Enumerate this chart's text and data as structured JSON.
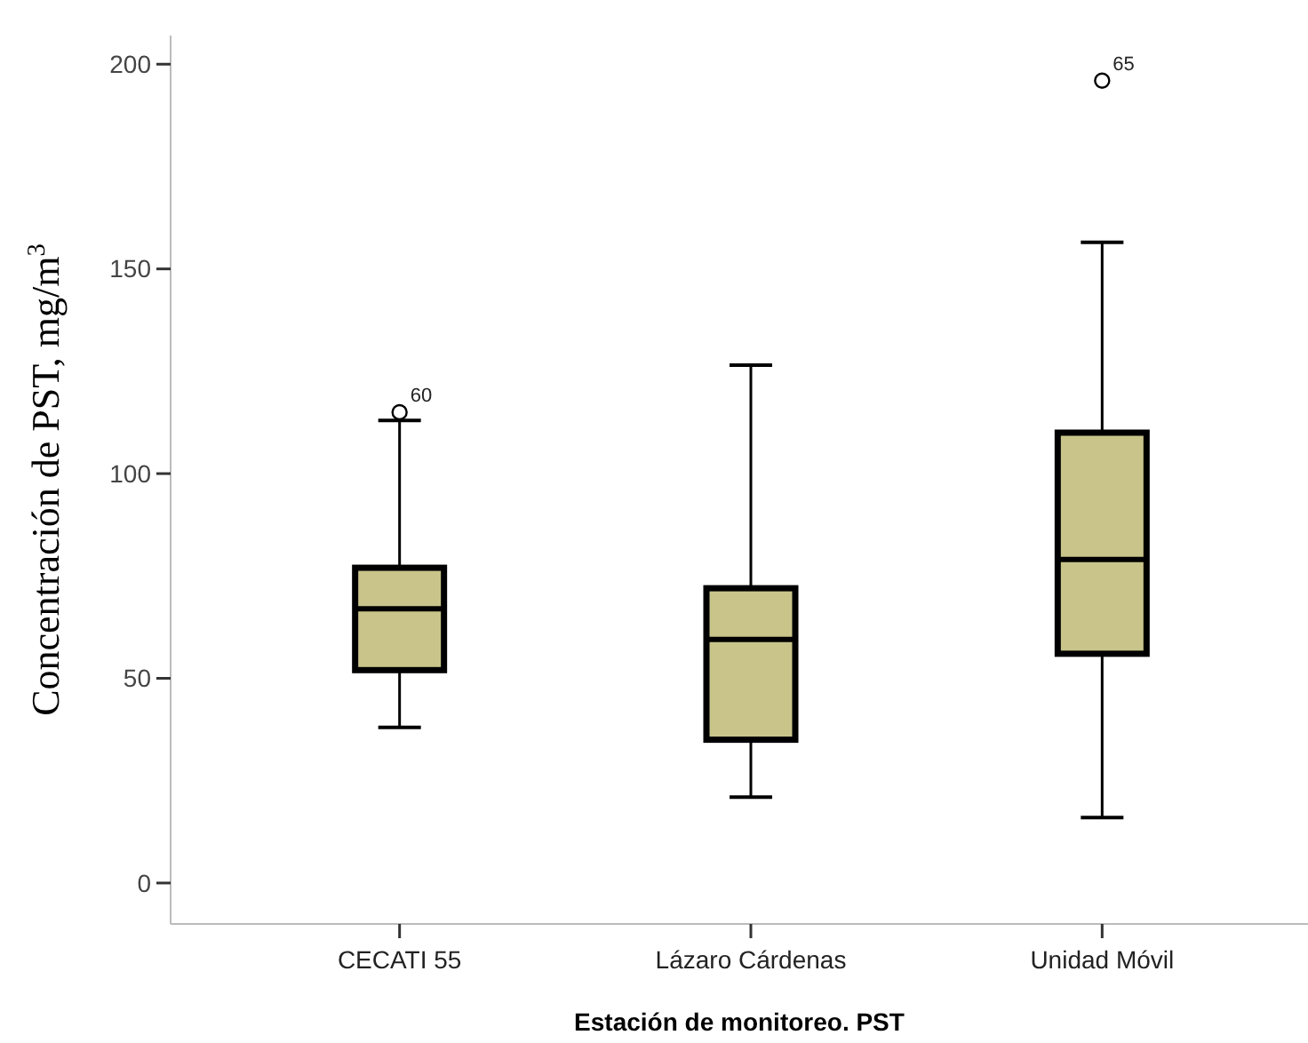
{
  "chart_data": {
    "type": "box",
    "xlabel": "Estación de monitoreo. PST",
    "ylabel": "Concentración de PST, mg/m$^{3}$",
    "categories": [
      "CECATI 55",
      "Lázaro Cárdenas",
      "Unidad Móvil"
    ],
    "boxes": [
      {
        "low": 38,
        "q1": 52,
        "median": 67,
        "q3": 77,
        "high": 113,
        "outliers": [
          115
        ]
      },
      {
        "low": 21,
        "q1": 35,
        "median": 59.5,
        "q3": 72,
        "high": 126.5
      },
      {
        "low": 16,
        "q1": 56,
        "median": 79,
        "q3": 110,
        "high": 156.5,
        "outliers": [
          196
        ]
      }
    ],
    "color": "#c9c58a",
    "ylim": [
      -10,
      207
    ],
    "yticks": [
      0,
      50,
      100,
      150,
      200
    ],
    "annotations": [
      "60",
      "65"
    ]
  }
}
